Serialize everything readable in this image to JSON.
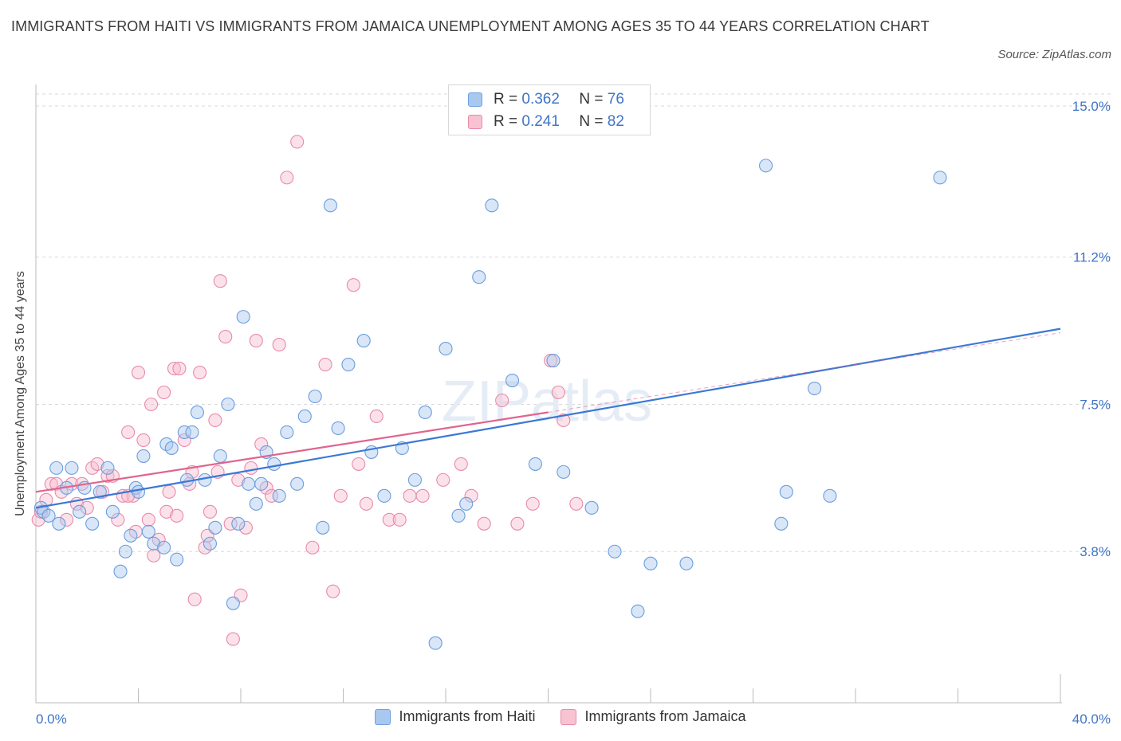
{
  "title": "IMMIGRANTS FROM HAITI VS IMMIGRANTS FROM JAMAICA UNEMPLOYMENT AMONG AGES 35 TO 44 YEARS CORRELATION CHART",
  "source": "Source: ZipAtlas.com",
  "watermark": "ZIPatlas",
  "legend_top": {
    "r_label": "R =",
    "n_label": "N =",
    "rows": [
      {
        "r": "0.362",
        "n": "76",
        "color": "#a9c8f0",
        "border": "#6f9fe0"
      },
      {
        "r": "0.241",
        "n": "82",
        "color": "#f8c2d3",
        "border": "#e88aa8"
      }
    ]
  },
  "colors": {
    "haiti_fill": "#a9c8f0",
    "haiti_stroke": "#6b9ddd",
    "haiti_line": "#3a78d4",
    "jamaica_fill": "#f7bfd0",
    "jamaica_stroke": "#e88aa8",
    "jamaica_line": "#e0648e",
    "axis_text": "#3f74c8",
    "grid": "#d9d9d9"
  },
  "chart_data": {
    "type": "scatter",
    "title": "IMMIGRANTS FROM HAITI VS IMMIGRANTS FROM JAMAICA UNEMPLOYMENT AMONG AGES 35 TO 44 YEARS CORRELATION CHART",
    "xlabel": "",
    "ylabel": "Unemployment Among Ages 35 to 44 years",
    "xlim": [
      0,
      40
    ],
    "ylim": [
      0,
      15.3
    ],
    "x_tick_labels": [
      "0.0%",
      "40.0%"
    ],
    "y_ticks": [
      3.8,
      7.5,
      11.2,
      15.0
    ],
    "y_tick_labels": [
      "3.8%",
      "7.5%",
      "11.2%",
      "15.0%"
    ],
    "grid": true,
    "legend_position": "bottom-center",
    "series": [
      {
        "name": "Immigrants from Haiti",
        "trend": {
          "x": [
            0,
            40
          ],
          "y": [
            4.9,
            9.4
          ]
        },
        "points": [
          [
            0.2,
            4.9
          ],
          [
            0.3,
            4.8
          ],
          [
            0.5,
            4.7
          ],
          [
            0.8,
            5.9
          ],
          [
            0.9,
            4.5
          ],
          [
            1.2,
            5.4
          ],
          [
            1.4,
            5.9
          ],
          [
            1.7,
            4.8
          ],
          [
            1.9,
            5.4
          ],
          [
            2.2,
            4.5
          ],
          [
            2.5,
            5.3
          ],
          [
            2.8,
            5.9
          ],
          [
            3.0,
            4.8
          ],
          [
            3.3,
            3.3
          ],
          [
            3.5,
            3.8
          ],
          [
            3.7,
            4.2
          ],
          [
            3.9,
            5.4
          ],
          [
            4.0,
            5.3
          ],
          [
            4.2,
            6.2
          ],
          [
            4.4,
            4.3
          ],
          [
            4.6,
            4.0
          ],
          [
            5.0,
            3.9
          ],
          [
            5.1,
            6.5
          ],
          [
            5.3,
            6.4
          ],
          [
            5.5,
            3.6
          ],
          [
            5.8,
            6.8
          ],
          [
            5.9,
            5.6
          ],
          [
            6.1,
            6.8
          ],
          [
            6.3,
            7.3
          ],
          [
            6.6,
            5.6
          ],
          [
            6.8,
            4.0
          ],
          [
            7.0,
            4.4
          ],
          [
            7.2,
            6.2
          ],
          [
            7.5,
            7.5
          ],
          [
            7.7,
            2.5
          ],
          [
            7.9,
            4.5
          ],
          [
            8.1,
            9.7
          ],
          [
            8.3,
            5.5
          ],
          [
            8.6,
            5.0
          ],
          [
            8.8,
            5.5
          ],
          [
            9.0,
            6.3
          ],
          [
            9.3,
            6.0
          ],
          [
            9.5,
            5.2
          ],
          [
            9.8,
            6.8
          ],
          [
            10.2,
            5.5
          ],
          [
            10.5,
            7.2
          ],
          [
            10.9,
            7.7
          ],
          [
            11.2,
            4.4
          ],
          [
            11.5,
            12.5
          ],
          [
            11.8,
            6.9
          ],
          [
            12.2,
            8.5
          ],
          [
            12.8,
            9.1
          ],
          [
            13.1,
            6.3
          ],
          [
            13.6,
            5.2
          ],
          [
            14.3,
            6.4
          ],
          [
            14.8,
            5.6
          ],
          [
            15.2,
            7.3
          ],
          [
            15.6,
            1.5
          ],
          [
            16.0,
            8.9
          ],
          [
            16.5,
            4.7
          ],
          [
            16.8,
            5.0
          ],
          [
            17.3,
            10.7
          ],
          [
            17.8,
            12.5
          ],
          [
            18.6,
            8.1
          ],
          [
            19.5,
            6.0
          ],
          [
            20.2,
            8.6
          ],
          [
            20.6,
            5.8
          ],
          [
            22.6,
            3.8
          ],
          [
            23.5,
            2.3
          ],
          [
            24.0,
            3.5
          ],
          [
            25.4,
            3.5
          ],
          [
            28.5,
            13.5
          ],
          [
            29.1,
            4.5
          ],
          [
            29.3,
            5.3
          ],
          [
            30.4,
            7.9
          ],
          [
            31.0,
            5.2
          ],
          [
            35.3,
            13.2
          ],
          [
            21.7,
            4.9
          ]
        ]
      },
      {
        "name": "Immigrants from Jamaica",
        "trend": {
          "x": [
            0,
            20
          ],
          "y": [
            5.3,
            7.3
          ]
        },
        "points": [
          [
            0.1,
            4.6
          ],
          [
            0.2,
            4.8
          ],
          [
            0.4,
            5.1
          ],
          [
            0.6,
            5.5
          ],
          [
            0.8,
            5.5
          ],
          [
            1.0,
            5.3
          ],
          [
            1.2,
            4.6
          ],
          [
            1.4,
            5.5
          ],
          [
            1.6,
            5.0
          ],
          [
            1.8,
            5.5
          ],
          [
            2.0,
            4.9
          ],
          [
            2.2,
            5.9
          ],
          [
            2.4,
            6.0
          ],
          [
            2.6,
            5.3
          ],
          [
            2.8,
            5.7
          ],
          [
            3.0,
            5.7
          ],
          [
            3.2,
            4.6
          ],
          [
            3.4,
            5.2
          ],
          [
            3.6,
            6.8
          ],
          [
            3.8,
            5.2
          ],
          [
            3.9,
            4.3
          ],
          [
            4.0,
            8.3
          ],
          [
            4.2,
            6.6
          ],
          [
            4.4,
            4.6
          ],
          [
            4.5,
            7.5
          ],
          [
            4.6,
            3.7
          ],
          [
            4.8,
            4.1
          ],
          [
            5.0,
            7.8
          ],
          [
            5.1,
            4.8
          ],
          [
            5.2,
            5.3
          ],
          [
            5.4,
            8.4
          ],
          [
            5.5,
            4.7
          ],
          [
            5.6,
            8.4
          ],
          [
            5.8,
            6.6
          ],
          [
            6.0,
            5.5
          ],
          [
            6.1,
            5.8
          ],
          [
            6.2,
            2.6
          ],
          [
            6.4,
            8.3
          ],
          [
            6.6,
            3.9
          ],
          [
            6.7,
            4.2
          ],
          [
            6.8,
            4.8
          ],
          [
            7.0,
            7.1
          ],
          [
            7.1,
            5.8
          ],
          [
            7.2,
            10.6
          ],
          [
            7.4,
            9.2
          ],
          [
            7.6,
            4.5
          ],
          [
            7.7,
            1.6
          ],
          [
            7.9,
            5.6
          ],
          [
            8.0,
            2.7
          ],
          [
            8.2,
            4.4
          ],
          [
            8.4,
            5.9
          ],
          [
            8.6,
            9.1
          ],
          [
            8.8,
            6.5
          ],
          [
            9.0,
            5.4
          ],
          [
            9.2,
            5.2
          ],
          [
            9.5,
            9.0
          ],
          [
            9.8,
            13.2
          ],
          [
            10.2,
            14.1
          ],
          [
            10.8,
            3.9
          ],
          [
            11.3,
            8.5
          ],
          [
            11.6,
            2.8
          ],
          [
            11.9,
            5.2
          ],
          [
            12.4,
            10.5
          ],
          [
            12.9,
            5.0
          ],
          [
            13.3,
            7.2
          ],
          [
            13.8,
            4.6
          ],
          [
            14.2,
            4.6
          ],
          [
            14.6,
            5.2
          ],
          [
            15.1,
            5.2
          ],
          [
            15.9,
            5.6
          ],
          [
            16.6,
            6.0
          ],
          [
            17.0,
            5.2
          ],
          [
            17.5,
            4.5
          ],
          [
            18.2,
            7.6
          ],
          [
            18.8,
            4.5
          ],
          [
            19.4,
            5.0
          ],
          [
            20.1,
            8.6
          ],
          [
            20.4,
            7.8
          ],
          [
            20.6,
            7.1
          ],
          [
            21.1,
            5.0
          ],
          [
            12.6,
            6.0
          ],
          [
            3.6,
            5.2
          ]
        ]
      }
    ]
  },
  "legend_bottom": [
    {
      "label": "Immigrants from Haiti"
    },
    {
      "label": "Immigrants from Jamaica"
    }
  ]
}
